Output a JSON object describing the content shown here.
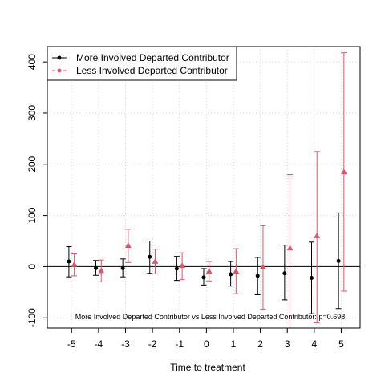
{
  "chart_data": {
    "type": "scatter",
    "xlabel": "Time to treatment",
    "ylabel": "",
    "x": [
      -5,
      -4,
      -3,
      -2,
      -1,
      0,
      1,
      2,
      3,
      4,
      5
    ],
    "xlim": [
      -5.9,
      5.7
    ],
    "ylim": [
      -120,
      430
    ],
    "xticks": [
      -5,
      -4,
      -3,
      -2,
      -1,
      0,
      1,
      2,
      3,
      4,
      5
    ],
    "yticks": [
      -100,
      0,
      100,
      200,
      300,
      400
    ],
    "grid": true,
    "zero_line": true,
    "legend_position": "top-left",
    "series": [
      {
        "name": "More Involved Departed Contributor",
        "color": "#000000",
        "marker": "circle",
        "estimate": [
          10,
          -3,
          -3,
          19,
          -4,
          -21,
          -15,
          -18,
          -13,
          -22,
          11
        ],
        "ci_low": [
          -20,
          -17,
          -20,
          -13,
          -27,
          -36,
          -38,
          -55,
          -65,
          -92,
          -82
        ],
        "ci_high": [
          39,
          12,
          15,
          50,
          20,
          -4,
          10,
          18,
          42,
          48,
          105
        ]
      },
      {
        "name": "Less Involved Departed Contributor",
        "color": "#DF536B",
        "marker": "triangle",
        "estimate": [
          4,
          -8,
          41,
          10,
          2,
          -9,
          -9,
          -1,
          36,
          60,
          185
        ],
        "ci_low": [
          -18,
          -30,
          8,
          -14,
          -25,
          -28,
          -53,
          -83,
          -120,
          -110,
          -48
        ],
        "ci_high": [
          25,
          13,
          73,
          34,
          27,
          10,
          35,
          80,
          180,
          225,
          418
        ]
      }
    ],
    "annotation": "More Involved Departed Contributor vs Less Involved Departed Contributor: p=0.698"
  }
}
